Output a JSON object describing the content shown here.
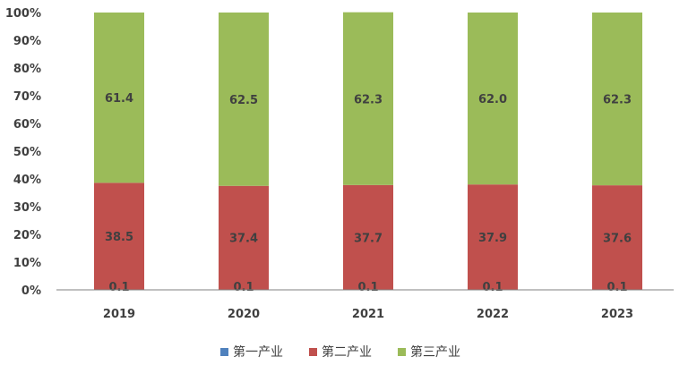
{
  "chart_data": {
    "type": "bar",
    "stacked": true,
    "percent_stacked": true,
    "categories": [
      "2019",
      "2020",
      "2021",
      "2022",
      "2023"
    ],
    "series": [
      {
        "name": "第一产业",
        "values": [
          0.1,
          0.1,
          0.1,
          0.1,
          0.1
        ],
        "color": "#4f81bd"
      },
      {
        "name": "第二产业",
        "values": [
          38.5,
          37.4,
          37.7,
          37.9,
          37.6
        ],
        "color": "#c0504d"
      },
      {
        "name": "第三产业",
        "values": [
          61.4,
          62.5,
          62.3,
          62.0,
          62.3
        ],
        "color": "#9bbb59"
      }
    ],
    "y_ticks": [
      "0%",
      "10%",
      "20%",
      "30%",
      "40%",
      "50%",
      "60%",
      "70%",
      "80%",
      "90%",
      "100%"
    ],
    "ylim": [
      0,
      100
    ],
    "grid": false,
    "legend_position": "bottom"
  }
}
